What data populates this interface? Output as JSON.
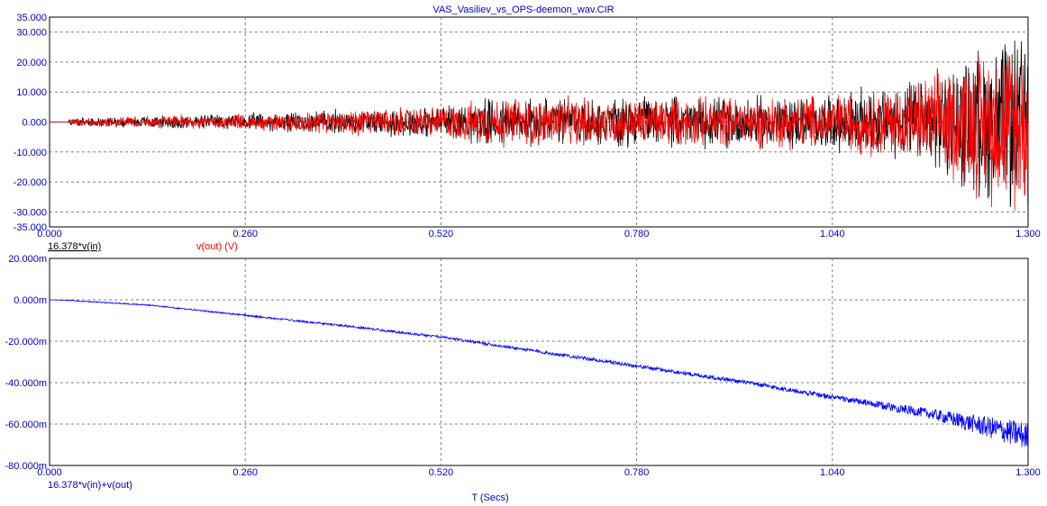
{
  "window": {
    "title": "VAS_Vasiliev_vs_OPS-deemon_wav.CIR"
  },
  "colors": {
    "axis_text": "#0000c8",
    "grid": "#808080",
    "trace_in": "#000000",
    "trace_out": "#ff0000",
    "trace_sum": "#0000ff"
  },
  "chart_data": [
    {
      "type": "line",
      "title": "VAS_Vasiliev_vs_OPS-deemon_wav.CIR",
      "xlim": [
        0,
        1.3
      ],
      "ylim": [
        -35,
        35
      ],
      "x_ticks": [
        "0.000",
        "0.260",
        "0.520",
        "0.780",
        "1.040",
        "1.300"
      ],
      "y_ticks": [
        "35.000",
        "30.000",
        "20.000",
        "10.000",
        "0.000",
        "-10.000",
        "-20.000",
        "-30.000",
        "-35.000"
      ],
      "y_tick_values": [
        35,
        30,
        20,
        10,
        0,
        -10,
        -20,
        -30,
        -35
      ],
      "grid": true,
      "series": [
        {
          "name": "16.378*v(in)",
          "color": "#000000",
          "x": [
            0.0,
            0.025,
            0.1,
            0.2,
            0.26,
            0.4,
            0.52,
            0.6,
            0.78,
            0.9,
            1.04,
            1.15,
            1.2,
            1.25,
            1.3
          ],
          "envelope": [
            0.0,
            1.2,
            2.0,
            2.8,
            3.2,
            5.0,
            6.0,
            9.5,
            9.0,
            9.5,
            10.5,
            15.0,
            22.0,
            30.0,
            33.0
          ]
        },
        {
          "name": "v(out) (V)",
          "color": "#ff0000",
          "x": [
            0.0,
            0.025,
            0.1,
            0.2,
            0.26,
            0.4,
            0.52,
            0.6,
            0.78,
            0.9,
            1.04,
            1.15,
            1.2,
            1.25,
            1.3
          ],
          "envelope": [
            0.0,
            1.2,
            2.0,
            2.8,
            3.2,
            5.0,
            6.0,
            9.5,
            9.0,
            9.5,
            10.5,
            15.0,
            22.0,
            30.0,
            33.0
          ]
        }
      ]
    },
    {
      "type": "line",
      "xlabel": "T (Secs)",
      "xlim": [
        0,
        1.3
      ],
      "ylim": [
        -80,
        20
      ],
      "x_ticks": [
        "0.000",
        "0.260",
        "0.520",
        "0.780",
        "1.040",
        "1.300"
      ],
      "y_ticks": [
        "20.000m",
        "0.000m",
        "-20.000m",
        "-40.000m",
        "-60.000m",
        "-80.000m"
      ],
      "y_tick_values": [
        20,
        0,
        -20,
        -40,
        -60,
        -80
      ],
      "grid": true,
      "series": [
        {
          "name": "16.378*v(in)+v(out)",
          "color": "#0000ff",
          "x": [
            0.0,
            0.026,
            0.13,
            0.26,
            0.39,
            0.52,
            0.65,
            0.78,
            0.91,
            1.04,
            1.17,
            1.3
          ],
          "y": [
            0.0,
            -0.3,
            -2.5,
            -7.5,
            -12.5,
            -18.0,
            -25.0,
            -32.0,
            -39.0,
            -47.0,
            -55.0,
            -66.0
          ],
          "ripple": [
            0.0,
            0.2,
            0.3,
            0.4,
            0.5,
            0.6,
            0.8,
            0.9,
            1.0,
            1.2,
            2.5,
            7.0
          ]
        }
      ]
    }
  ]
}
